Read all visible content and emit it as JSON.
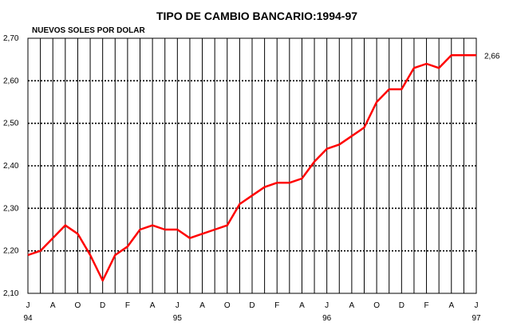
{
  "chart_data": {
    "type": "line",
    "title": "TIPO DE CAMBIO BANCARIO:1994-97",
    "ylabel": "NUEVOS SOLES POR DOLAR",
    "ylim": [
      2.1,
      2.7
    ],
    "yticks": [
      "2,10",
      "2,20",
      "2,30",
      "2,40",
      "2,50",
      "2,60",
      "2,70"
    ],
    "xticks": [
      "J",
      "A",
      "O",
      "D",
      "F",
      "A",
      "J",
      "A",
      "O",
      "D",
      "F",
      "A",
      "J",
      "A",
      "O",
      "D",
      "F",
      "A",
      "J"
    ],
    "years": [
      "94",
      "95",
      "96",
      "97"
    ],
    "end_label": "2,66",
    "grid": true,
    "line_color": "#ff0000",
    "series": [
      {
        "x": [
          "Jul 94",
          "Aug 94",
          "Sep 94",
          "Oct 94",
          "Nov 94",
          "Dec 94",
          "Jan 95",
          "Feb 95",
          "Mar 95",
          "Apr 95",
          "May 95",
          "Jun 95",
          "Jul 95",
          "Aug 95",
          "Sep 95",
          "Oct 95",
          "Nov 95",
          "Dec 95",
          "Jan 96",
          "Feb 96",
          "Mar 96",
          "Apr 96",
          "May 96",
          "Jun 96",
          "Jul 96",
          "Aug 96",
          "Sep 96",
          "Oct 96",
          "Nov 96",
          "Dec 96",
          "Jan 97",
          "Feb 97",
          "Mar 97",
          "Apr 97",
          "May 97",
          "Jun 97",
          "Jul 97"
        ],
        "values": [
          2.19,
          2.2,
          2.23,
          2.26,
          2.24,
          2.19,
          2.13,
          2.19,
          2.21,
          2.25,
          2.26,
          2.25,
          2.25,
          2.23,
          2.24,
          2.25,
          2.26,
          2.31,
          2.33,
          2.35,
          2.36,
          2.36,
          2.37,
          2.41,
          2.44,
          2.45,
          2.47,
          2.49,
          2.55,
          2.58,
          2.58,
          2.63,
          2.64,
          2.63,
          2.66,
          2.66,
          2.66
        ]
      }
    ]
  }
}
